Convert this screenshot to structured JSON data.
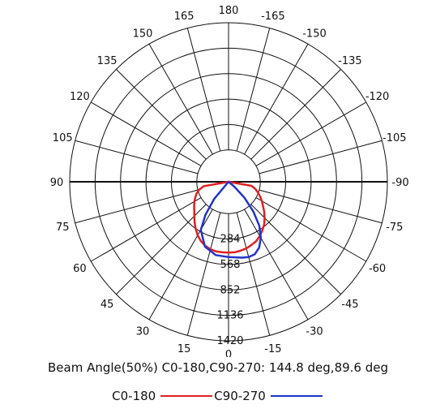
{
  "chart_data": {
    "type": "polar",
    "title": "",
    "angle_labels": [
      "-165",
      "180",
      "165",
      "-150",
      "150",
      "-135",
      "135",
      "-120",
      "120",
      "-105",
      "105",
      "-90",
      "90",
      "-75",
      "75",
      "-60",
      "60",
      "-45",
      "45",
      "-30",
      "30",
      "-15",
      "0",
      "15"
    ],
    "angle_values": [
      -165,
      180,
      165,
      -150,
      150,
      -135,
      135,
      -120,
      120,
      -105,
      105,
      -90,
      90,
      -75,
      75,
      -60,
      60,
      -45,
      45,
      -30,
      30,
      -15,
      0,
      15
    ],
    "radial_labels": [
      "284",
      "568",
      "852",
      "1136",
      "1420"
    ],
    "radial_values": [
      284,
      568,
      852,
      1136,
      1420
    ],
    "radial_max": 1420,
    "grid": true,
    "series": [
      {
        "name": "C0-180",
        "color": "#e02020",
        "angles": [
          -90,
          -80,
          -75,
          -70,
          -65,
          -60,
          -55,
          -50,
          -45,
          -40,
          -35,
          -30,
          -25,
          -20,
          -15,
          -10,
          -5,
          0,
          5,
          10,
          15,
          20,
          25,
          30,
          35,
          40,
          45,
          50,
          55,
          60,
          65,
          70,
          75,
          80,
          90
        ],
        "values": [
          0,
          280,
          340,
          380,
          410,
          440,
          470,
          500,
          540,
          590,
          640,
          690,
          730,
          760,
          780,
          790,
          790,
          790,
          790,
          780,
          770,
          750,
          730,
          700,
          660,
          620,
          570,
          520,
          470,
          430,
          390,
          350,
          310,
          260,
          0
        ]
      },
      {
        "name": "C90-270",
        "color": "#2233cc",
        "angles": [
          -45,
          -40,
          -35,
          -30,
          -20,
          -10,
          0,
          10,
          15,
          20,
          25,
          30,
          35,
          40,
          45,
          50,
          55
        ],
        "values": [
          0,
          250,
          450,
          620,
          770,
          830,
          840,
          860,
          870,
          860,
          810,
          720,
          600,
          430,
          250,
          80,
          0
        ]
      }
    ]
  },
  "footer": {
    "beam_angle": "Beam Angle(50%) C0-180,C90-270: 144.8 deg,89.6 deg",
    "legend_c0": "C0-180",
    "legend_c90": "C90-270"
  }
}
